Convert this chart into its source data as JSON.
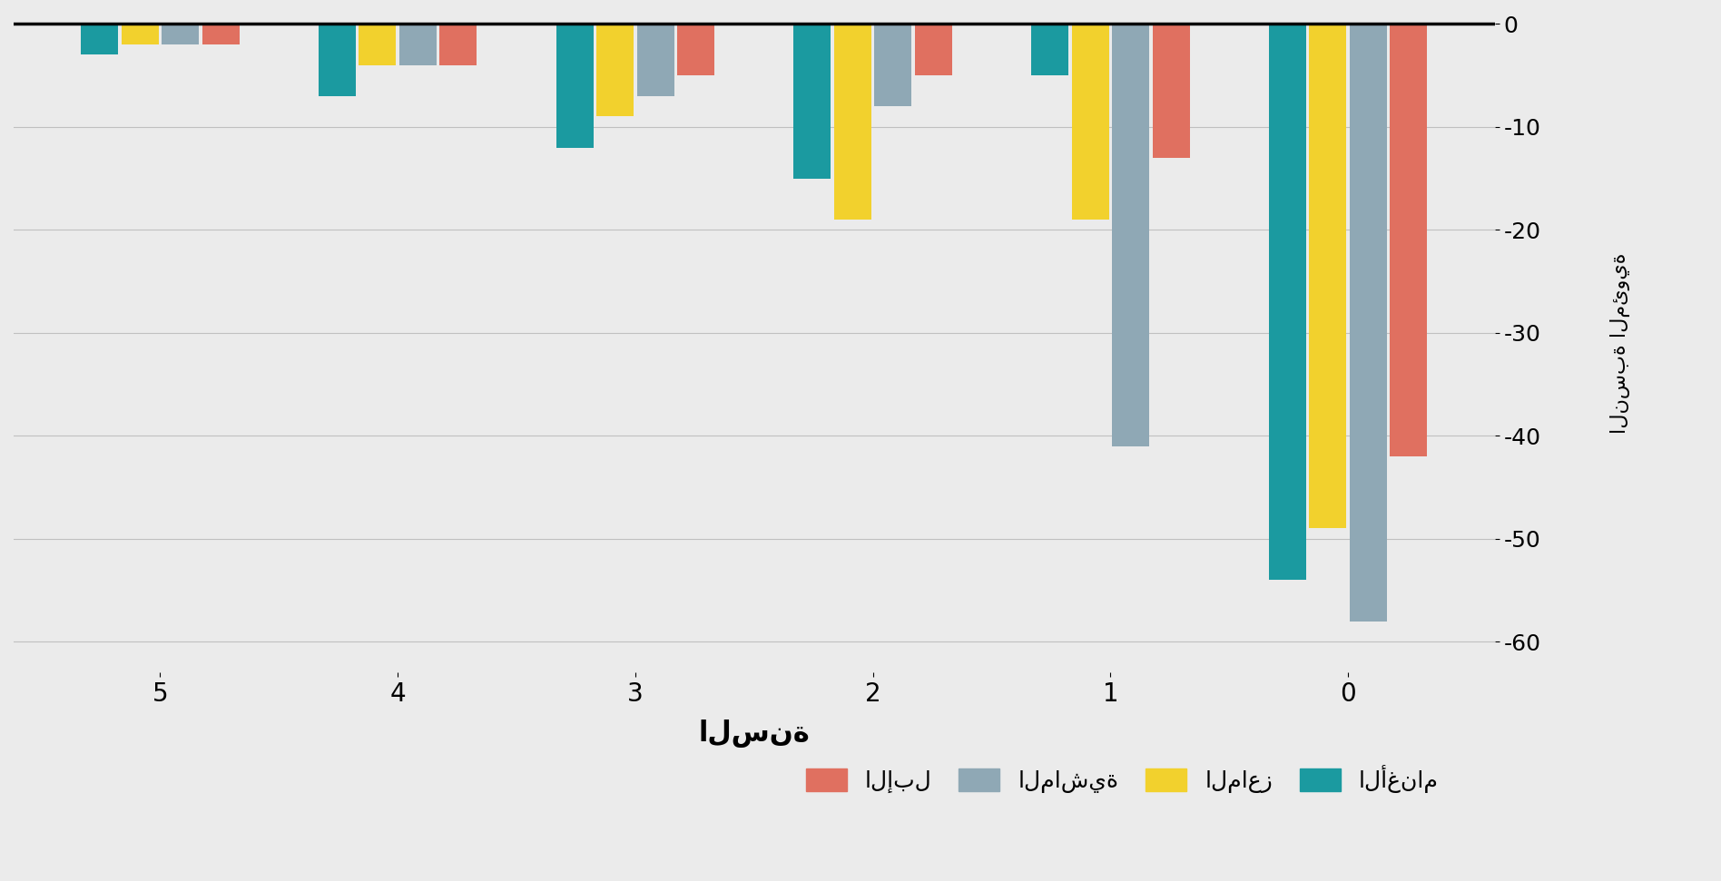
{
  "categories": [
    "5",
    "4",
    "3",
    "2",
    "1",
    "0"
  ],
  "series_order": [
    "الأغنام",
    "الماعز",
    "الماشية",
    "الإبل"
  ],
  "series": {
    "الأغنام": [
      -3.0,
      -7.0,
      -12.0,
      -15.0,
      -5.0,
      -54.0
    ],
    "الماعز": [
      -2.0,
      -4.0,
      -9.0,
      -19.0,
      -19.0,
      -49.0
    ],
    "الماشية": [
      -2.0,
      -4.0,
      -7.0,
      -8.0,
      -41.0,
      -58.0
    ],
    "الإبل": [
      -2.0,
      -4.0,
      -5.0,
      -5.0,
      -13.0,
      -42.0
    ]
  },
  "colors": {
    "الأغنام": "#1b9aa0",
    "الماعز": "#f2d12d",
    "الماشية": "#8fa8b5",
    "الإبل": "#e07060"
  },
  "xlabel": "السنة",
  "ylabel": "النسبة المئوية",
  "ylim": [
    -63,
    1
  ],
  "yticks": [
    0,
    -10,
    -20,
    -30,
    -40,
    -50,
    -60
  ],
  "background_color": "#ebebeb",
  "grid_color": "#c0c0c0",
  "bar_width": 0.17,
  "legend_order": [
    "الإبل",
    "الماشية",
    "الماعز",
    "الأغنام"
  ]
}
